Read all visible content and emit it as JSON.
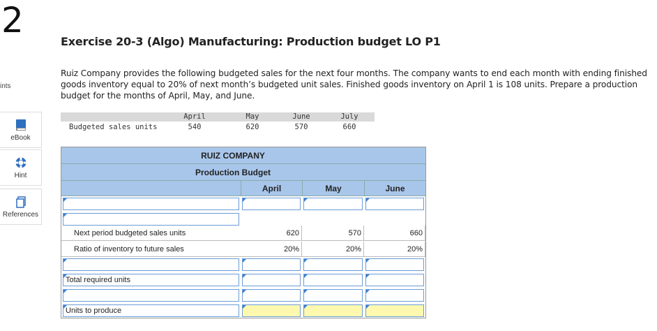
{
  "question_number": "2",
  "points_label": "ints",
  "sidebar": {
    "ebook_label": "eBook",
    "hint_label": "Hint",
    "references_label": "References"
  },
  "exercise": {
    "title": "Exercise 20-3 (Algo) Manufacturing: Production budget LO P1",
    "prompt": "Ruiz Company provides the following budgeted sales for the next four months. The company wants to end each month with ending finished goods inventory equal to 20% of next month’s budgeted unit sales. Finished goods inventory on April 1 is 108 units. Prepare a production budget for the months of April, May, and June."
  },
  "given_table": {
    "months": [
      "April",
      "May",
      "June",
      "July"
    ],
    "row_label": "Budgeted sales units",
    "values": [
      "540",
      "620",
      "570",
      "660"
    ]
  },
  "budget": {
    "company": "RUIZ COMPANY",
    "title": "Production Budget",
    "columns": [
      "April",
      "May",
      "June"
    ],
    "rows": {
      "next_period_label": "Next period budgeted sales units",
      "next_period_values": [
        "620",
        "570",
        "660"
      ],
      "ratio_label": "Ratio of inventory to future sales",
      "ratio_values": [
        "20%",
        "20%",
        "20%"
      ],
      "total_required_label": "Total required units",
      "units_to_produce_label": "Units to produce"
    }
  }
}
